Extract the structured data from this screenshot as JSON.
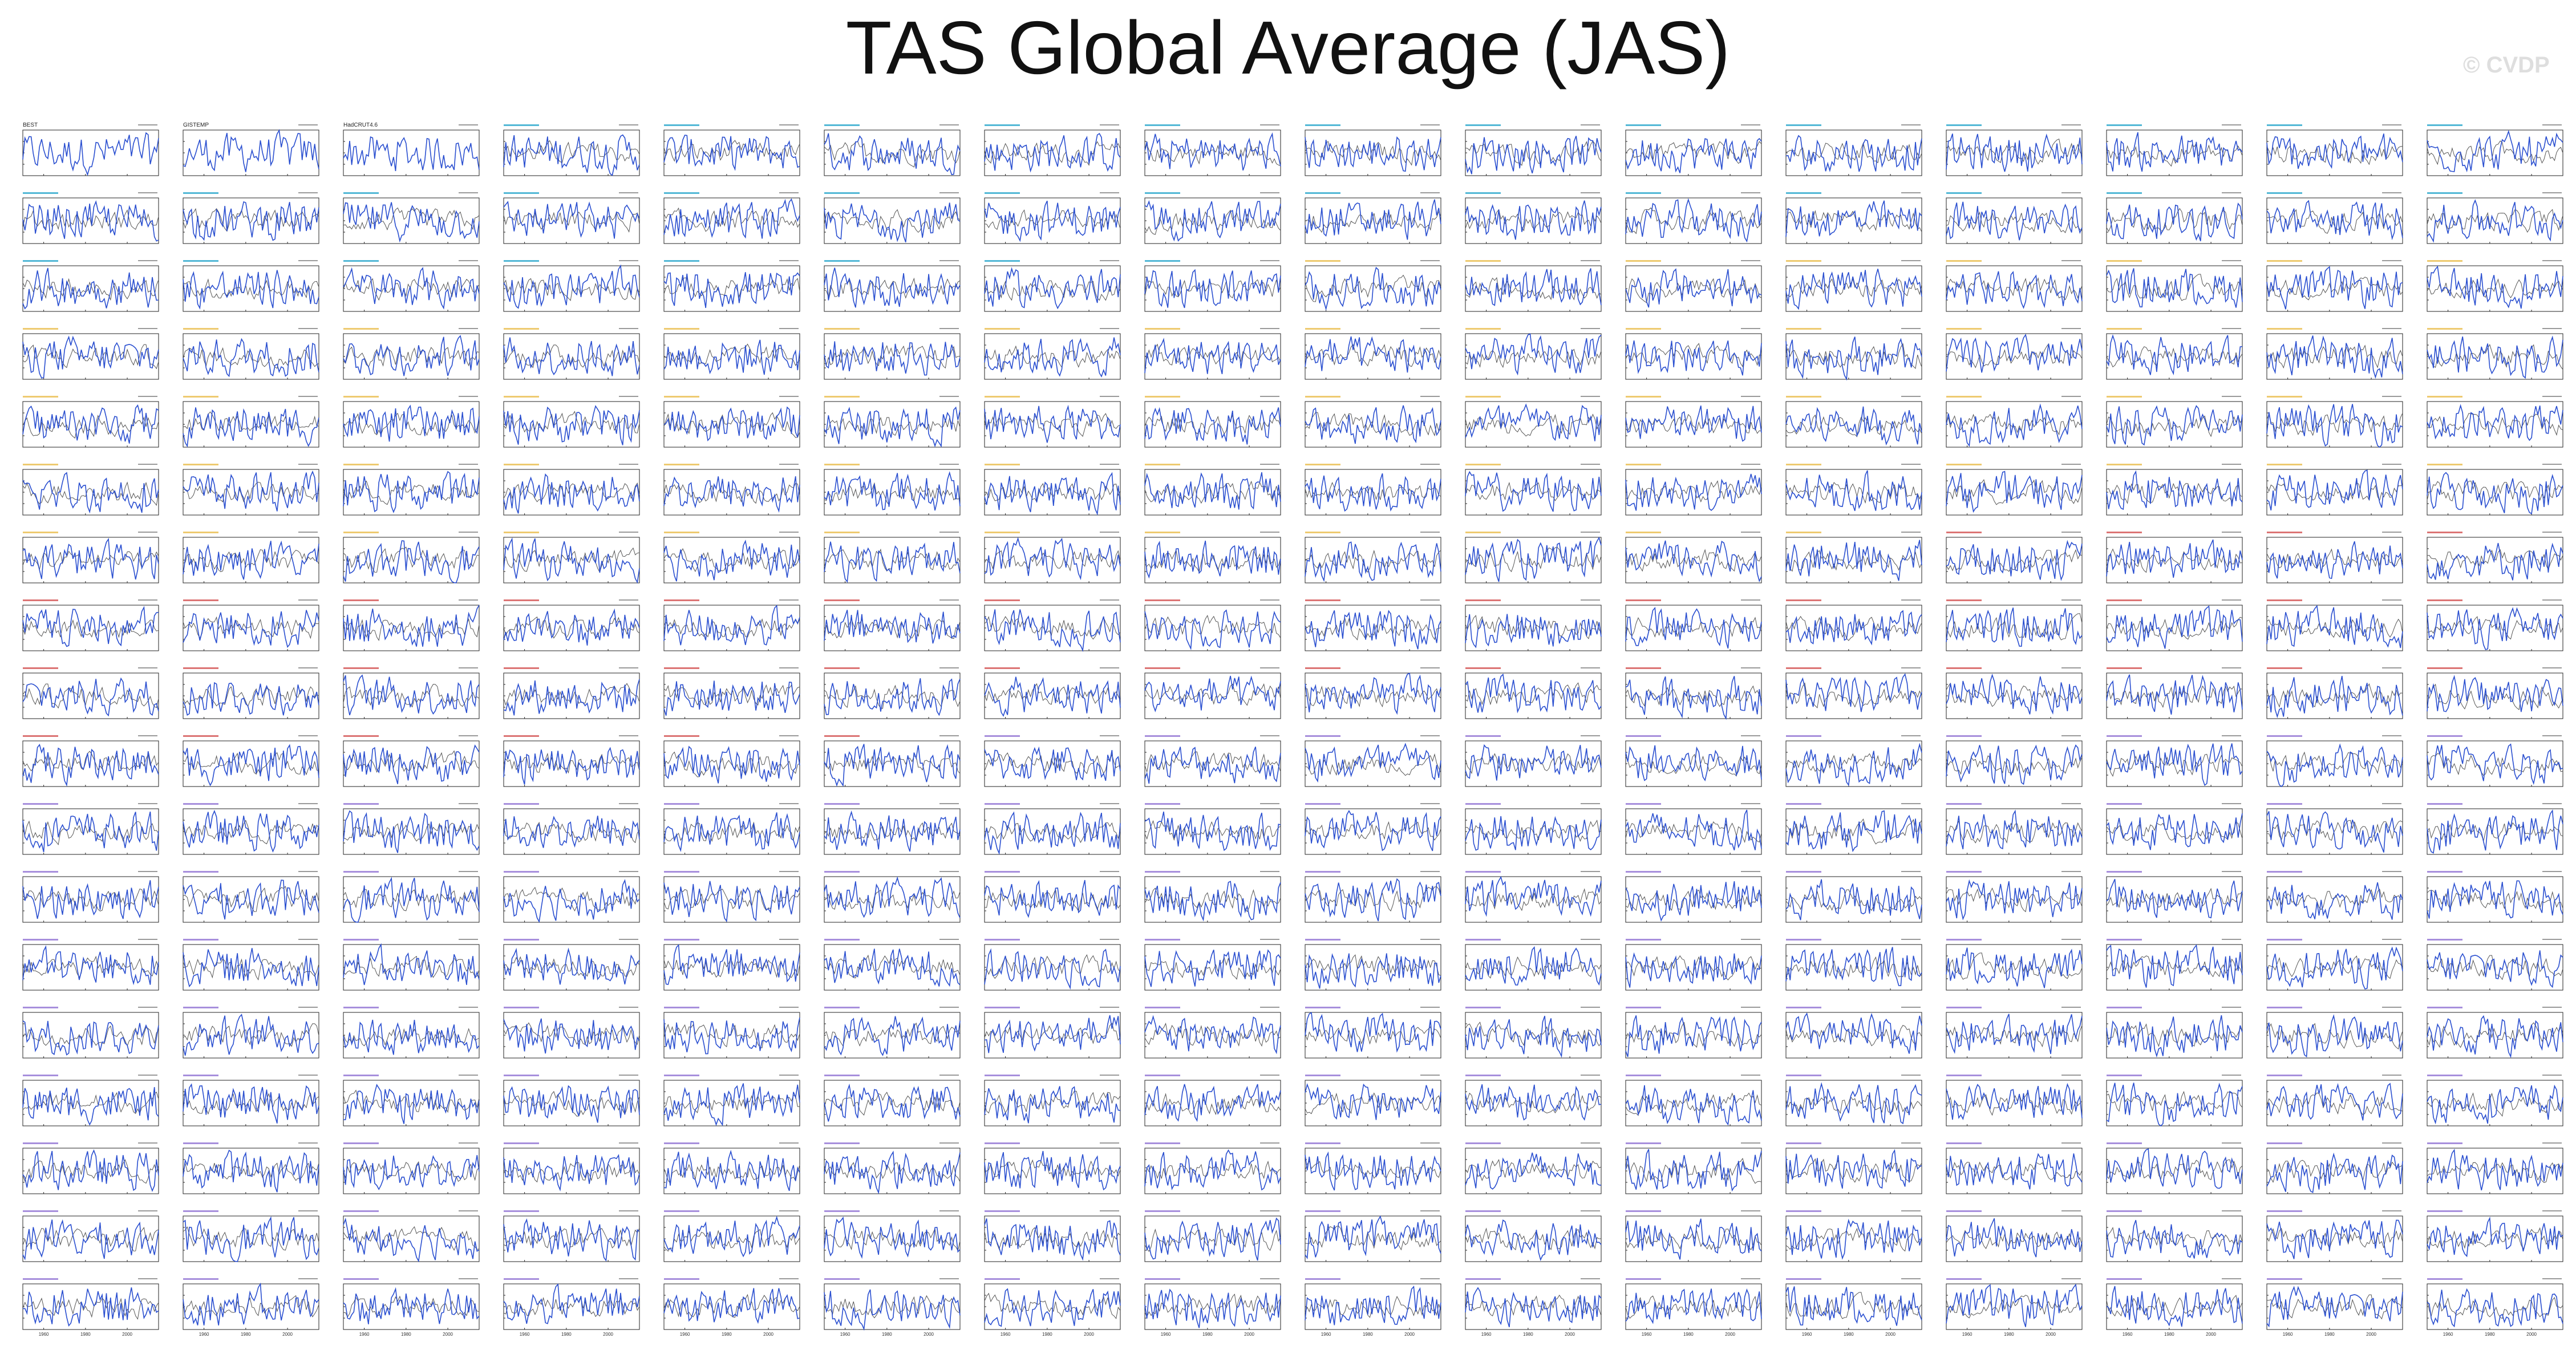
{
  "title": "TAS Global Average (JAS)",
  "watermark": "© CVDP",
  "colors": {
    "model_line": "#2a4fd0",
    "obs_line": "#555555",
    "obs_title": "#222222",
    "access_esm": "#1aa0c8",
    "canesm": "#e8b840",
    "cesm_red": "#d04545",
    "cesm_purple": "#8a6ad0"
  },
  "chart_data": {
    "type": "line",
    "title": "TAS Global Average (JAS)",
    "layout": {
      "rows": 18,
      "cols": 16
    },
    "x": {
      "range": [
        1950,
        2015
      ],
      "ticks": [
        "1960",
        "1980",
        "2000"
      ]
    },
    "y": {
      "range": [
        -0.5,
        0.5
      ],
      "ticks": [
        "0.25",
        "0.00",
        "-0.25"
      ]
    },
    "panel_label_suffix": "deg C",
    "obs_panels": [
      "BEST",
      "GISTEMP",
      "HadCRUT4.6"
    ],
    "model_panel_count": 285,
    "panel_title_colors": {
      "obs": "#222222",
      "ACCESS-ESM1-5": "#1aa0c8",
      "CanESM2": "#e8b840",
      "CESM1-CAM5-a": "#d04545",
      "CESM1-CAM5-b": "#8a6ad0"
    }
  }
}
